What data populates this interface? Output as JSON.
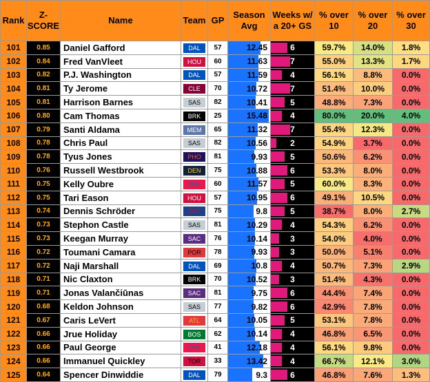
{
  "headers": {
    "rank": "Rank",
    "z": "Z-SCORE",
    "name": "Name",
    "team": "Team",
    "gp": "GP",
    "avg": "Season Avg",
    "weeks": "Weeks w/ a 20+ GS",
    "p10": "% over 10",
    "p20": "% over 20",
    "p30": "% over 30"
  },
  "team_colors": {
    "DAL": {
      "bg": "#0053bc",
      "fg": "#ffffff"
    },
    "HOU": {
      "bg": "#ce1141",
      "fg": "#ffffff"
    },
    "CLE": {
      "bg": "#860038",
      "fg": "#ffffff"
    },
    "SAS": {
      "bg": "#c4ced4",
      "fg": "#000000"
    },
    "BRK": {
      "bg": "#000000",
      "fg": "#ffffff"
    },
    "MEM": {
      "bg": "#5d76a9",
      "fg": "#ffffff"
    },
    "PHO": {
      "bg": "#1d1160",
      "fg": "#e56020"
    },
    "DEN": {
      "bg": "#0e2240",
      "fg": "#fec524"
    },
    "PHI": {
      "bg": "#ed174c",
      "fg": "#006bb6"
    },
    "DET": {
      "bg": "#1d428a",
      "fg": "#c8102e"
    },
    "SAC": {
      "bg": "#5a2d81",
      "fg": "#ffffff"
    },
    "POR": {
      "bg": "#e03a3e",
      "fg": "#000000"
    },
    "ATL": {
      "bg": "#e03a3e",
      "fg": "#fdb927"
    },
    "BOS": {
      "bg": "#007a33",
      "fg": "#ffffff"
    },
    "TOR": {
      "bg": "#ce1141",
      "fg": "#000000"
    }
  },
  "rows": [
    {
      "rank": "101",
      "z": "0.85",
      "name": "Daniel Gafford",
      "team": "DAL",
      "gp": "57",
      "avg": "12.45",
      "weeks": "6",
      "p10": "59.7%",
      "p20": "14.0%",
      "p30": "1.8%"
    },
    {
      "rank": "102",
      "z": "0.84",
      "name": "Fred VanVleet",
      "team": "HOU",
      "gp": "60",
      "avg": "11.63",
      "weeks": "7",
      "p10": "55.0%",
      "p20": "13.3%",
      "p30": "1.7%"
    },
    {
      "rank": "103",
      "z": "0.82",
      "name": "P.J. Washington",
      "team": "DAL",
      "gp": "57",
      "avg": "11.59",
      "weeks": "4",
      "p10": "56.1%",
      "p20": "8.8%",
      "p30": "0.0%"
    },
    {
      "rank": "104",
      "z": "0.81",
      "name": "Ty Jerome",
      "team": "CLE",
      "gp": "70",
      "avg": "10.72",
      "weeks": "7",
      "p10": "51.4%",
      "p20": "10.0%",
      "p30": "0.0%"
    },
    {
      "rank": "105",
      "z": "0.81",
      "name": "Harrison Barnes",
      "team": "SAS",
      "gp": "82",
      "avg": "10.41",
      "weeks": "5",
      "p10": "48.8%",
      "p20": "7.3%",
      "p30": "0.0%"
    },
    {
      "rank": "106",
      "z": "0.80",
      "name": "Cam Thomas",
      "team": "BRK",
      "gp": "25",
      "avg": "15.48",
      "weeks": "4",
      "p10": "80.0%",
      "p20": "20.0%",
      "p30": "4.0%"
    },
    {
      "rank": "107",
      "z": "0.79",
      "name": "Santi Aldama",
      "team": "MEM",
      "gp": "65",
      "avg": "11.32",
      "weeks": "7",
      "p10": "55.4%",
      "p20": "12.3%",
      "p30": "0.0%"
    },
    {
      "rank": "108",
      "z": "0.78",
      "name": "Chris Paul",
      "team": "SAS",
      "gp": "82",
      "avg": "10.56",
      "weeks": "2",
      "p10": "54.9%",
      "p20": "3.7%",
      "p30": "0.0%"
    },
    {
      "rank": "109",
      "z": "0.78",
      "name": "Tyus Jones",
      "team": "PHO",
      "gp": "81",
      "avg": "9.93",
      "weeks": "5",
      "p10": "50.6%",
      "p20": "6.2%",
      "p30": "0.0%"
    },
    {
      "rank": "110",
      "z": "0.76",
      "name": "Russell Westbrook",
      "team": "DEN",
      "gp": "75",
      "avg": "10.88",
      "weeks": "6",
      "p10": "53.3%",
      "p20": "8.0%",
      "p30": "0.0%"
    },
    {
      "rank": "111",
      "z": "0.75",
      "name": "Kelly Oubre",
      "team": "PHI",
      "gp": "60",
      "avg": "11.57",
      "weeks": "5",
      "p10": "60.0%",
      "p20": "8.3%",
      "p30": "0.0%"
    },
    {
      "rank": "112",
      "z": "0.75",
      "name": "Tari Eason",
      "team": "HOU",
      "gp": "57",
      "avg": "10.95",
      "weeks": "6",
      "p10": "49.1%",
      "p20": "10.5%",
      "p30": "0.0%"
    },
    {
      "rank": "113",
      "z": "0.74",
      "name": "Dennis Schröder",
      "team": "DET",
      "gp": "75",
      "avg": "9.8",
      "weeks": "5",
      "p10": "38.7%",
      "p20": "8.0%",
      "p30": "2.7%"
    },
    {
      "rank": "114",
      "z": "0.73",
      "name": "Stephon Castle",
      "team": "SAS",
      "gp": "81",
      "avg": "10.29",
      "weeks": "4",
      "p10": "54.3%",
      "p20": "6.2%",
      "p30": "0.0%"
    },
    {
      "rank": "115",
      "z": "0.73",
      "name": "Keegan Murray",
      "team": "SAC",
      "gp": "76",
      "avg": "10.14",
      "weeks": "3",
      "p10": "54.0%",
      "p20": "4.0%",
      "p30": "0.0%"
    },
    {
      "rank": "116",
      "z": "0.72",
      "name": "Toumani Camara",
      "team": "POR",
      "gp": "78",
      "avg": "9.93",
      "weeks": "3",
      "p10": "50.0%",
      "p20": "5.1%",
      "p30": "0.0%"
    },
    {
      "rank": "117",
      "z": "0.72",
      "name": "Naji Marshall",
      "team": "DAL",
      "gp": "69",
      "avg": "10.8",
      "weeks": "4",
      "p10": "50.7%",
      "p20": "7.3%",
      "p30": "2.9%"
    },
    {
      "rank": "118",
      "z": "0.71",
      "name": "Nic Claxton",
      "team": "BRK",
      "gp": "70",
      "avg": "10.52",
      "weeks": "3",
      "p10": "51.4%",
      "p20": "4.3%",
      "p30": "0.0%"
    },
    {
      "rank": "119",
      "z": "0.71",
      "name": "Jonas Valančiūnas",
      "team": "SAC",
      "gp": "81",
      "avg": "9.75",
      "weeks": "6",
      "p10": "44.4%",
      "p20": "7.4%",
      "p30": "0.0%"
    },
    {
      "rank": "120",
      "z": "0.68",
      "name": "Keldon Johnson",
      "team": "SAS",
      "gp": "77",
      "avg": "9.82",
      "weeks": "6",
      "p10": "42.9%",
      "p20": "7.8%",
      "p30": "0.0%"
    },
    {
      "rank": "121",
      "z": "0.67",
      "name": "Caris LeVert",
      "team": "ATL",
      "gp": "64",
      "avg": "10.05",
      "weeks": "5",
      "p10": "53.1%",
      "p20": "7.8%",
      "p30": "0.0%"
    },
    {
      "rank": "122",
      "z": "0.66",
      "name": "Jrue Holiday",
      "team": "BOS",
      "gp": "62",
      "avg": "10.14",
      "weeks": "4",
      "p10": "46.8%",
      "p20": "6.5%",
      "p30": "0.0%"
    },
    {
      "rank": "123",
      "z": "0.66",
      "name": "Paul George",
      "team": "PHI",
      "gp": "41",
      "avg": "12.18",
      "weeks": "4",
      "p10": "56.1%",
      "p20": "9.8%",
      "p30": "0.0%"
    },
    {
      "rank": "124",
      "z": "0.66",
      "name": "Immanuel Quickley",
      "team": "TOR",
      "gp": "33",
      "avg": "13.42",
      "weeks": "4",
      "p10": "66.7%",
      "p20": "12.1%",
      "p30": "3.0%"
    },
    {
      "rank": "125",
      "z": "0.64",
      "name": "Spencer Dinwiddie",
      "team": "DAL",
      "gp": "79",
      "avg": "9.3",
      "weeks": "6",
      "p10": "46.8%",
      "p20": "7.6%",
      "p30": "1.3%"
    }
  ]
}
